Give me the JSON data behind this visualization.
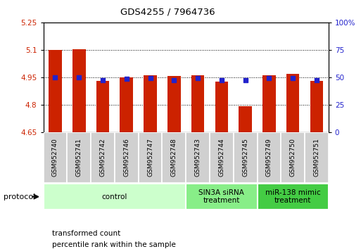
{
  "title": "GDS4255 / 7964736",
  "samples": [
    "GSM952740",
    "GSM952741",
    "GSM952742",
    "GSM952746",
    "GSM952747",
    "GSM952748",
    "GSM952743",
    "GSM952744",
    "GSM952745",
    "GSM952749",
    "GSM952750",
    "GSM952751"
  ],
  "red_values": [
    5.1,
    5.105,
    4.93,
    4.95,
    4.96,
    4.955,
    4.96,
    4.925,
    4.79,
    4.96,
    4.97,
    4.93
  ],
  "blue_values": [
    4.95,
    4.95,
    4.935,
    4.94,
    4.945,
    4.935,
    4.945,
    4.935,
    4.935,
    4.945,
    4.945,
    4.935
  ],
  "ylim_left": [
    4.65,
    5.25
  ],
  "ylim_right": [
    0,
    100
  ],
  "yticks_left": [
    4.65,
    4.8,
    4.95,
    5.1,
    5.25
  ],
  "yticks_right": [
    0,
    25,
    50,
    75,
    100
  ],
  "ytick_labels_left": [
    "4.65",
    "4.8",
    "4.95",
    "5.1",
    "5.25"
  ],
  "ytick_labels_right": [
    "0",
    "25",
    "50",
    "75",
    "100%"
  ],
  "bar_color": "#cc2200",
  "dot_color": "#2222cc",
  "bar_width": 0.55,
  "group_ranges": [
    [
      0,
      5
    ],
    [
      6,
      8
    ],
    [
      9,
      11
    ]
  ],
  "group_labels": [
    "control",
    "SIN3A siRNA\ntreatment",
    "miR-138 mimic\ntreatment"
  ],
  "group_colors": [
    "#ccffcc",
    "#88ee88",
    "#44cc44"
  ],
  "legend_labels": [
    "transformed count",
    "percentile rank within the sample"
  ],
  "legend_colors": [
    "#cc2200",
    "#2222cc"
  ],
  "protocol_label": "protocol",
  "tick_label_color_left": "#cc2200",
  "tick_label_color_right": "#2222cc",
  "grid_yticks": [
    4.8,
    4.95,
    5.1
  ]
}
